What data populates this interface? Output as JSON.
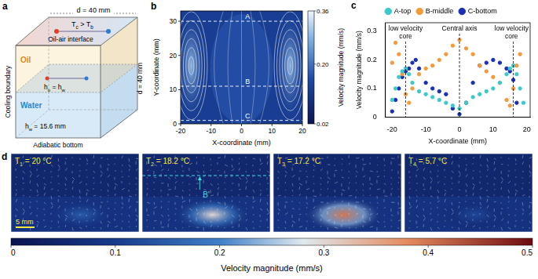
{
  "panel_a": {
    "letter": "a",
    "top_width": "d = 40 mm",
    "side_width": "d = 40 mm",
    "temperature": [
      "T",
      {
        "sub": "c"
      },
      " > T",
      {
        "sub": "b"
      }
    ],
    "interface": "Oil-air interface",
    "oil": "Oil",
    "water": "Water",
    "oil_depth": [
      "h",
      {
        "sub": "o"
      },
      " = h",
      {
        "sub": "w"
      }
    ],
    "water_depth": [
      "h",
      {
        "sub": "w"
      },
      " = 15.6 mm"
    ],
    "side_boundary": "Cooling boundary",
    "bottom": "Adiabatic bottom"
  },
  "panel_b": {
    "letter": "b",
    "xlabel": "X-coordinate (mm)",
    "ylabel": "Y-coordinate (mm)",
    "xlim": [
      -20,
      20
    ],
    "ylim": [
      0,
      33
    ],
    "xticks": [
      -20,
      -10,
      0,
      10,
      20
    ],
    "yticks": [
      0,
      10,
      20,
      30
    ],
    "line_labels": [
      {
        "text": "A",
        "y": 30
      },
      {
        "text": "B",
        "y": 11
      },
      {
        "text": "C",
        "y": 1
      }
    ],
    "colorbar": {
      "label": "Velocity magnitude (mm/s)",
      "range": [
        0.02,
        0.36
      ],
      "ticks": [
        0.02,
        {
          "value": 0.2,
          "label": "0.20"
        },
        0.36
      ]
    }
  },
  "chart_data": {
    "letter": "c",
    "type": "scatter",
    "marker": "circle",
    "xlabel": "X-coordinate (mm)",
    "ylabel": "Velocity magnitude (mm/s)",
    "xlim": [
      -22,
      21
    ],
    "xticks": [
      -20,
      -10,
      0,
      10,
      20
    ],
    "ylim": [
      0,
      0.33
    ],
    "yticks": [
      0,
      0.1,
      0.2,
      0.3
    ],
    "grid": false,
    "legend": "top",
    "annotations": [
      {
        "text": "low velocity core",
        "x": -16
      },
      {
        "text": "Central axis",
        "x": 0
      },
      {
        "text": "low velocity core",
        "x": 16
      }
    ],
    "series": [
      {
        "name": "A-top",
        "color": "#3ec9c9",
        "x": [
          -20,
          -19,
          -18,
          -17,
          -16,
          -15,
          -14,
          -12,
          -10,
          -8,
          -6,
          -4,
          -2,
          0,
          2,
          4,
          6,
          8,
          10,
          12,
          14,
          15,
          16,
          17,
          18,
          19
        ],
        "values": [
          0.06,
          0.1,
          0.14,
          0.16,
          0.17,
          0.15,
          0.12,
          0.09,
          0.08,
          0.07,
          0.06,
          0.05,
          0.04,
          0.03,
          0.05,
          0.07,
          0.08,
          0.09,
          0.1,
          0.12,
          0.15,
          0.17,
          0.18,
          0.15,
          0.1,
          0.05
        ]
      },
      {
        "name": "B-middle",
        "color": "#f39a3c",
        "x": [
          -20,
          -19,
          -18,
          -17,
          -16,
          -15,
          -14,
          -12,
          -10,
          -8,
          -6,
          -4,
          -2,
          0,
          2,
          4,
          6,
          8,
          10,
          12,
          14,
          15,
          16,
          17,
          18
        ],
        "values": [
          0.19,
          0.26,
          0.22,
          0.15,
          0.08,
          0.05,
          0.1,
          0.15,
          0.17,
          0.18,
          0.2,
          0.22,
          0.25,
          0.27,
          0.24,
          0.22,
          0.18,
          0.16,
          0.14,
          0.12,
          0.06,
          0.04,
          0.1,
          0.18,
          0.22
        ]
      },
      {
        "name": "C-bottom",
        "color": "#1a2fb5",
        "x": [
          -20,
          -19,
          -18,
          -17,
          -16,
          -15,
          -14,
          -13,
          -12,
          -10,
          -8,
          -6,
          -4,
          -2,
          0,
          2,
          4,
          6,
          8,
          10,
          12,
          14,
          15,
          16,
          17
        ],
        "values": [
          0.02,
          0.06,
          0.1,
          0.14,
          0.16,
          0.17,
          0.19,
          0.2,
          0.17,
          0.12,
          0.1,
          0.09,
          0.08,
          0.03,
          0.01,
          0.05,
          0.12,
          0.18,
          0.19,
          0.2,
          0.19,
          0.17,
          0.16,
          0.13,
          0.05
        ]
      }
    ]
  },
  "panel_d": {
    "letter": "d",
    "frames": [
      {
        "label": [
          "T",
          {
            "sub": "1"
          },
          " = 20 °C"
        ],
        "peak_velocity": 0.15
      },
      {
        "label": [
          "T",
          {
            "sub": "2"
          },
          " = 18.2 °C"
        ],
        "peak_velocity": 0.3
      },
      {
        "label": [
          "T",
          {
            "sub": "3"
          },
          " = 17.2 °C"
        ],
        "peak_velocity": 0.4
      },
      {
        "label": [
          "T",
          {
            "sub": "4"
          },
          " = 5.7 °C"
        ],
        "peak_velocity": 0.12
      }
    ],
    "marker": {
      "frame": 1,
      "text": "B'"
    },
    "scale_bar": "5 mm",
    "colorbar": {
      "label": "Velocity magnitude (mm/s)",
      "range": [
        0,
        0.5
      ],
      "ticks": [
        0,
        0.1,
        0.2,
        0.3,
        0.4,
        0.5
      ]
    }
  }
}
